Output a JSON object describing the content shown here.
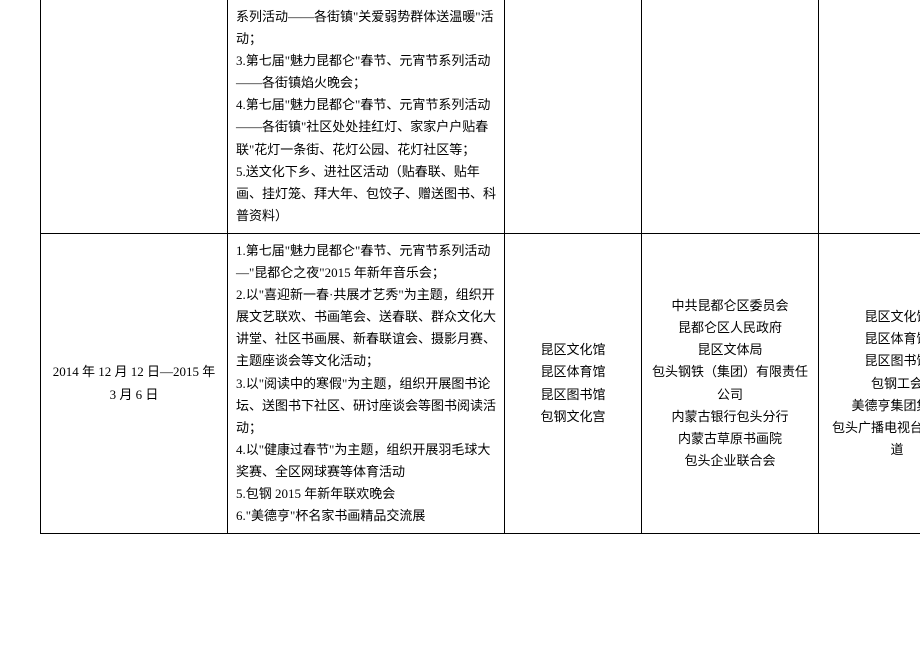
{
  "table": {
    "rows": [
      {
        "date": "",
        "content": "系列活动——各街镇\"关爱弱势群体送温暖\"活动；\n3.第七届\"魅力昆都仑\"春节、元宵节系列活动——各街镇焰火晚会；\n4.第七届\"魅力昆都仑\"春节、元宵节系列活动——各街镇\"社区处处挂红灯、家家户户贴春联\"花灯一条街、花灯公园、花灯社区等；\n5.送文化下乡、进社区活动（贴春联、贴年画、挂灯笼、拜大年、包饺子、赠送图书、科普资料）",
        "venue": "",
        "org": "",
        "coorg": ""
      },
      {
        "date": "2014 年 12 月 12 日—2015 年 3 月 6 日",
        "content": "1.第七届\"魅力昆都仑\"春节、元宵节系列活动—\"昆都仑之夜\"2015 年新年音乐会；\n2.以\"喜迎新一春·共展才艺秀\"为主题，组织开展文艺联欢、书画笔会、送春联、群众文化大讲堂、社区书画展、新春联谊会、摄影月赛、主题座谈会等文化活动；\n3.以\"阅读中的寒假\"为主题，组织开展图书论坛、送图书下社区、研讨座谈会等图书阅读活动；\n4.以\"健康过春节\"为主题，组织开展羽毛球大奖赛、全区网球赛等体育活动\n5.包钢 2015 年新年联欢晚会\n6.\"美德亨\"杯名家书画精品交流展",
        "venue": "昆区文化馆\n昆区体育馆\n昆区图书馆\n包钢文化宫",
        "org": "中共昆都仑区委员会\n昆都仑区人民政府\n昆区文体局\n包头钢铁（集团）有限责任公司\n内蒙古银行包头分行\n内蒙古草原书画院\n包头企业联合会",
        "coorg": "昆区文化馆\n昆区体育馆\n昆区图书馆\n包钢工会\n美德亨集团集团\n包头广播电视台经济频道"
      }
    ]
  }
}
